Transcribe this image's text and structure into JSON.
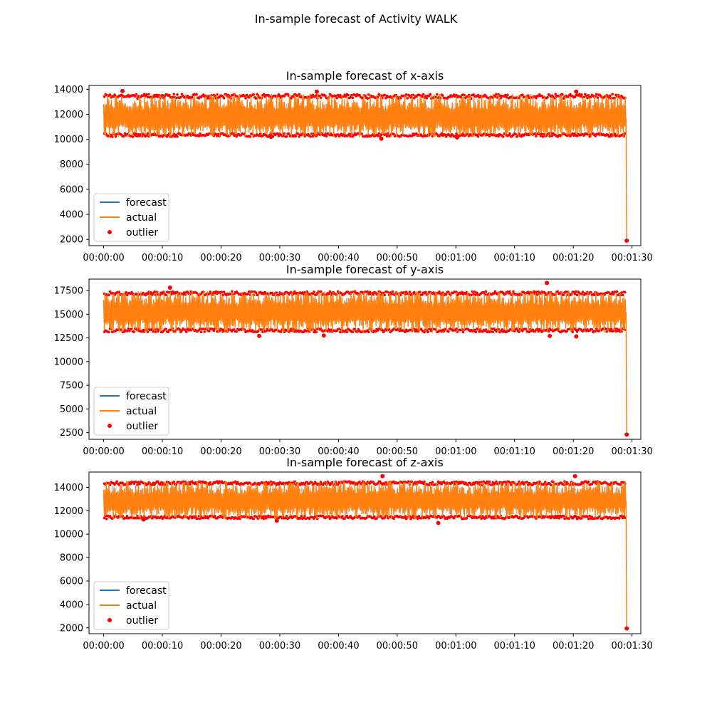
{
  "figure": {
    "title": "In-sample forecast of Activity WALK"
  },
  "chart_data": [
    {
      "type": "line",
      "title": "In-sample forecast of x-axis",
      "xlabel": "",
      "ylabel": "",
      "x_unit": "seconds",
      "xlim": [
        -2.5,
        91.5
      ],
      "ylim": [
        1500,
        14300
      ],
      "x_ticks": [
        "00:00:00",
        "00:00:10",
        "00:00:20",
        "00:00:30",
        "00:00:40",
        "00:00:50",
        "00:01:00",
        "00:01:10",
        "00:01:20",
        "00:01:30"
      ],
      "y_ticks": [
        2000,
        4000,
        6000,
        8000,
        10000,
        12000,
        14000
      ],
      "legend": [
        "forecast",
        "actual",
        "outlier"
      ],
      "legend_position": "lower left",
      "series": [
        {
          "name": "forecast",
          "color": "#1f77b4",
          "x_range": [
            0,
            89
          ],
          "center": 11700,
          "low": 10700,
          "high": 12900
        },
        {
          "name": "actual",
          "color": "#ff7f0e",
          "x_range": [
            0,
            89
          ],
          "center": 11700,
          "low": 10200,
          "high": 13600,
          "final_point": [
            89.1,
            1900
          ]
        },
        {
          "name": "outlier",
          "color": "#ff0000",
          "points": [
            [
              3.2,
              13850
            ],
            [
              36.3,
              13800
            ],
            [
              80.5,
              13800
            ],
            [
              5.5,
              10350
            ],
            [
              28.5,
              10200
            ],
            [
              47.3,
              10050
            ],
            [
              60.2,
              10150
            ],
            [
              89.1,
              1900
            ]
          ]
        }
      ]
    },
    {
      "type": "line",
      "title": "In-sample forecast of y-axis",
      "xlabel": "",
      "ylabel": "",
      "x_unit": "seconds",
      "xlim": [
        -2.5,
        91.5
      ],
      "ylim": [
        1800,
        18700
      ],
      "x_ticks": [
        "00:00:00",
        "00:00:10",
        "00:00:20",
        "00:00:30",
        "00:00:40",
        "00:00:50",
        "00:01:00",
        "00:01:10",
        "00:01:20",
        "00:01:30"
      ],
      "y_ticks": [
        2500,
        5000,
        7500,
        10000,
        12500,
        15000,
        17500
      ],
      "legend": [
        "forecast",
        "actual",
        "outlier"
      ],
      "legend_position": "lower left",
      "series": [
        {
          "name": "forecast",
          "color": "#1f77b4",
          "x_range": [
            0,
            89
          ],
          "center": 15200,
          "low": 13900,
          "high": 16700
        },
        {
          "name": "actual",
          "color": "#ff7f0e",
          "x_range": [
            0,
            89
          ],
          "center": 15200,
          "low": 13100,
          "high": 17400,
          "final_point": [
            89.1,
            2300
          ]
        },
        {
          "name": "outlier",
          "color": "#ff0000",
          "points": [
            [
              11.3,
              17800
            ],
            [
              75.5,
              18300
            ],
            [
              26.5,
              12700
            ],
            [
              37.5,
              12750
            ],
            [
              76.0,
              12700
            ],
            [
              80.5,
              12650
            ],
            [
              89.1,
              2300
            ]
          ]
        }
      ]
    },
    {
      "type": "line",
      "title": "In-sample forecast of z-axis",
      "xlabel": "",
      "ylabel": "",
      "x_unit": "seconds",
      "xlim": [
        -2.5,
        91.5
      ],
      "ylim": [
        1500,
        15300
      ],
      "x_ticks": [
        "00:00:00",
        "00:00:10",
        "00:00:20",
        "00:00:30",
        "00:00:40",
        "00:00:50",
        "00:01:00",
        "00:01:10",
        "00:01:20",
        "00:01:30"
      ],
      "y_ticks": [
        2000,
        4000,
        6000,
        8000,
        10000,
        12000,
        14000
      ],
      "legend": [
        "forecast",
        "actual",
        "outlier"
      ],
      "legend_position": "lower left",
      "series": [
        {
          "name": "forecast",
          "color": "#1f77b4",
          "x_range": [
            0,
            89
          ],
          "center": 12800,
          "low": 11700,
          "high": 14100
        },
        {
          "name": "actual",
          "color": "#ff7f0e",
          "x_range": [
            0,
            89
          ],
          "center": 12800,
          "low": 11300,
          "high": 14500,
          "final_point": [
            89.1,
            1950
          ]
        },
        {
          "name": "outlier",
          "color": "#ff0000",
          "points": [
            [
              47.5,
              14950
            ],
            [
              80.3,
              14950
            ],
            [
              6.8,
              11250
            ],
            [
              29.5,
              11150
            ],
            [
              57.0,
              10950
            ],
            [
              89.1,
              1950
            ]
          ]
        }
      ]
    }
  ]
}
